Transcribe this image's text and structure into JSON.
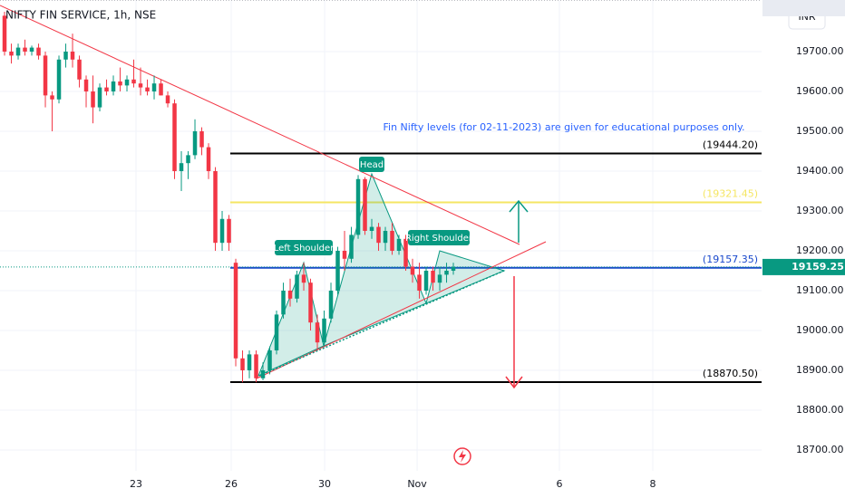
{
  "chart_data": {
    "type": "candlestick",
    "title": "NIFTY FIN SERVICE, 1h, NSE",
    "currency": "INR",
    "note": "Fin Nifty levels (for 02-11-2023) are given for educational purposes only.",
    "up_color": "#089981",
    "down_color": "#f23645",
    "xlim": [
      -0.67,
      111.33
    ],
    "xticks": [
      {
        "value": 19.33,
        "label": "23"
      },
      {
        "value": 33.33,
        "label": "26"
      },
      {
        "value": 47.07,
        "label": "30"
      },
      {
        "value": 60.67,
        "label": "Nov"
      },
      {
        "value": 81.6,
        "label": "6"
      },
      {
        "value": 95.33,
        "label": "8"
      }
    ],
    "ylim": [
      18647.7,
      19829.5
    ],
    "yticks": [
      {
        "value": 19700,
        "label": "19700.00"
      },
      {
        "value": 19600,
        "label": "19600.00"
      },
      {
        "value": 19500,
        "label": "19500.00"
      },
      {
        "value": 19400,
        "label": "19400.00"
      },
      {
        "value": 19300,
        "label": "19300.00"
      },
      {
        "value": 19200,
        "label": "19200.00"
      },
      {
        "value": 19100,
        "label": "19100.00"
      },
      {
        "value": 19000,
        "label": "19000.00"
      },
      {
        "value": 18900,
        "label": "18900.00"
      },
      {
        "value": 18800,
        "label": "18800.00"
      },
      {
        "value": 18700,
        "label": "18700.00"
      }
    ],
    "levels": [
      {
        "value": 19444.2,
        "label": "(19444.20)",
        "color": "#000000"
      },
      {
        "value": 19321.45,
        "label": "(19321.45)",
        "color": "#f5e663"
      },
      {
        "value": 19157.35,
        "label": "(19157.35)",
        "color": "#1848cc"
      },
      {
        "value": 18870.5,
        "label": "(18870.50)",
        "color": "#000000"
      }
    ],
    "last_price": {
      "value": 19159.25,
      "label": "19159.25"
    },
    "low": [
      19690,
      19670,
      19680,
      19690,
      19690,
      19680,
      19560,
      19500,
      19570,
      19660,
      19660,
      19610,
      19560,
      19520,
      19550,
      19590,
      19590,
      19600,
      19600,
      19610,
      19590,
      19590,
      19580,
      19590,
      19560,
      19380,
      19350,
      19380,
      19430,
      19440,
      19380,
      19200,
      19200,
      19200,
      18910,
      18870,
      18880,
      18870,
      18875,
      18890,
      18940,
      19030,
      19060,
      19070,
      19100,
      19000,
      18950,
      18960,
      19020,
      19090,
      19150,
      19170,
      19230,
      19240,
      19230,
      19200,
      19200,
      19190,
      19190,
      19150,
      19120,
      19080,
      19090,
      19100,
      19100,
      19120,
      19140
    ],
    "pattern_labels": [
      "Left Shoulder",
      "Head",
      "Right Shoulder"
    ],
    "open": [
      19790,
      19700,
      19690,
      19710,
      19700,
      19710,
      19690,
      19590,
      19580,
      19680,
      19700,
      19680,
      19630,
      19600,
      19560,
      19610,
      19600,
      19625,
      19615,
      19630,
      19620,
      19610,
      19600,
      19620,
      19590,
      19570,
      19400,
      19420,
      19440,
      19500,
      19460,
      19400,
      19220,
      19280,
      19170,
      18930,
      18900,
      18940,
      18880,
      18900,
      18950,
      19040,
      19100,
      19080,
      19140,
      19120,
      19020,
      18970,
      19030,
      19100,
      19200,
      19180,
      19240,
      19380,
      19250,
      19260,
      19220,
      19250,
      19200,
      19230,
      19160,
      19140,
      19100,
      19150,
      19120,
      19140,
      19150
    ],
    "high": [
      19800,
      19720,
      19720,
      19730,
      19715,
      19720,
      19700,
      19600,
      19690,
      19720,
      19745,
      19690,
      19640,
      19640,
      19620,
      19630,
      19640,
      19660,
      19640,
      19680,
      19660,
      19630,
      19640,
      19630,
      19600,
      19580,
      19450,
      19450,
      19530,
      19510,
      19470,
      19410,
      19300,
      19290,
      19180,
      18950,
      18950,
      18950,
      18920,
      18960,
      19050,
      19120,
      19130,
      19150,
      19170,
      19130,
      19040,
      19050,
      19120,
      19210,
      19250,
      19260,
      19390,
      19385,
      19280,
      19270,
      19260,
      19270,
      19240,
      19240,
      19180,
      19170,
      19160,
      19160,
      19160,
      19170,
      19170
    ],
    "close": [
      19700,
      19690,
      19710,
      19700,
      19710,
      19690,
      19590,
      19580,
      19680,
      19700,
      19680,
      19630,
      19600,
      19560,
      19610,
      19600,
      19625,
      19615,
      19630,
      19620,
      19610,
      19600,
      19620,
      19590,
      19570,
      19400,
      19420,
      19440,
      19500,
      19460,
      19400,
      19220,
      19280,
      19220,
      18930,
      18900,
      18940,
      18880,
      18900,
      18950,
      19040,
      19100,
      19080,
      19140,
      19120,
      19020,
      18970,
      19030,
      19100,
      19200,
      19180,
      19240,
      19380,
      19250,
      19260,
      19220,
      19250,
      19200,
      19230,
      19160,
      19140,
      19100,
      19150,
      19120,
      19140,
      19150,
      19159.25
    ]
  }
}
